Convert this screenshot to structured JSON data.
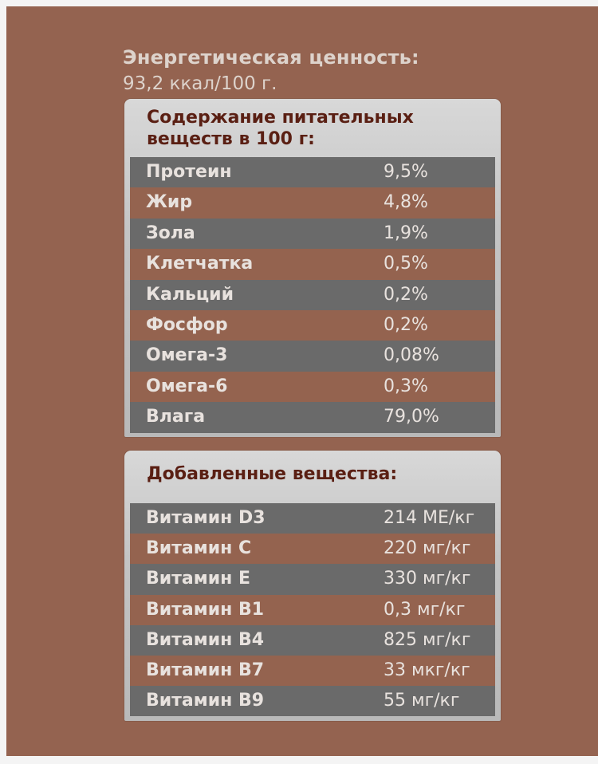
{
  "energy": {
    "title": "Энергетическая ценность:",
    "value": "93,2 ккал/100 г."
  },
  "nutrients": {
    "heading": [
      "Содержание питательных",
      "веществ в 100 г:"
    ],
    "rows": [
      {
        "name": "Протеин",
        "value": "9,5%"
      },
      {
        "name": "Жир",
        "value": "4,8%"
      },
      {
        "name": "Зола",
        "value": "1,9%"
      },
      {
        "name": "Клетчатка",
        "value": "0,5%"
      },
      {
        "name": "Кальций",
        "value": "0,2%"
      },
      {
        "name": "Фосфор",
        "value": "0,2%"
      },
      {
        "name": "Омега-3",
        "value": "0,08%"
      },
      {
        "name": "Омега-6",
        "value": "0,3%"
      },
      {
        "name": "Влага",
        "value": "79,0%"
      }
    ]
  },
  "additives": {
    "heading": "Добавленные вещества:",
    "rows": [
      {
        "name": "Витамин D3",
        "value": "214 МЕ/кг"
      },
      {
        "name": "Витамин С",
        "value": "220 мг/кг"
      },
      {
        "name": "Витамин Е",
        "value": "330 мг/кг"
      },
      {
        "name": "Витамин В1",
        "value": "0,3 мг/кг"
      },
      {
        "name": "Витамин В4",
        "value": "825 мг/кг"
      },
      {
        "name": "Витамин В7",
        "value": "33 мкг/кг"
      },
      {
        "name": "Витамин В9",
        "value": "55 мг/кг"
      }
    ]
  },
  "colors": {
    "background": "#946350",
    "row_dark": "#6a6a6a",
    "row_brown": "#94634f",
    "heading_text": "#5a1f13",
    "panel": "#c8c8c8"
  }
}
